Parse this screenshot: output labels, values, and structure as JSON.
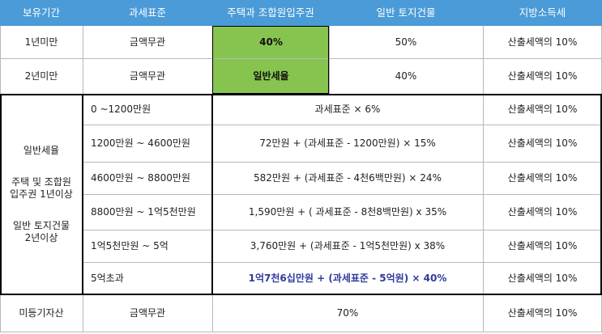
{
  "headers": [
    "보유기간",
    "과세표준",
    "주택과 조합원입주권",
    "일반 토지건물",
    "지방소득세"
  ],
  "row1": {
    "period": "1년미만",
    "base": "금액무관",
    "housing": "40%",
    "land": "50%",
    "local": "산출세액의 10%"
  },
  "row2": {
    "period": "2년미만",
    "base": "금액무관",
    "housing": "일반세율",
    "land": "40%",
    "local": "산출세액의 10%"
  },
  "general_group_label": {
    "line1": "일반세율",
    "line2": "주택 및 조합원",
    "line3": "입주권 1년이상",
    "line4": "일반 토지건물",
    "line5": "2년이상"
  },
  "brackets": [
    {
      "base": "0 ~1200만원",
      "formula": "과세표준  × 6%",
      "local": "산출세액의 10%"
    },
    {
      "base": "1200만원 ~ 4600만원",
      "formula": "72만원 + (과세표준 - 1200만원) × 15%",
      "local": "산출세액의 10%"
    },
    {
      "base": "4600만원 ~ 8800만원",
      "formula": "582만원 + (과세표준 - 4천6백만원) × 24%",
      "local": "산출세액의 10%"
    },
    {
      "base": "8800만원 ~ 1억5천만원",
      "formula": "1,590만원 + ( 과세표준 - 8천8백만원) x 35%",
      "local": "산출세액의 10%"
    },
    {
      "base": "1억5천만원 ~ 5억",
      "formula": "3,760만원 + (과세표준 - 1억5천만원) x 38%",
      "local": "산출세액의 10%"
    },
    {
      "base": "5억초과",
      "formula": "1억7천6십만원 + (과세표준 - 5억원) × 40%",
      "local": "산출세액의 10%"
    }
  ],
  "last": {
    "period": "미등기자산",
    "base": "금액무관",
    "rate": "70%",
    "local": "산출세액의 10%"
  },
  "colors": {
    "header": "#4a9bd7",
    "highlight": "#86c44f",
    "emphasis_text": "#2f3b9c"
  }
}
